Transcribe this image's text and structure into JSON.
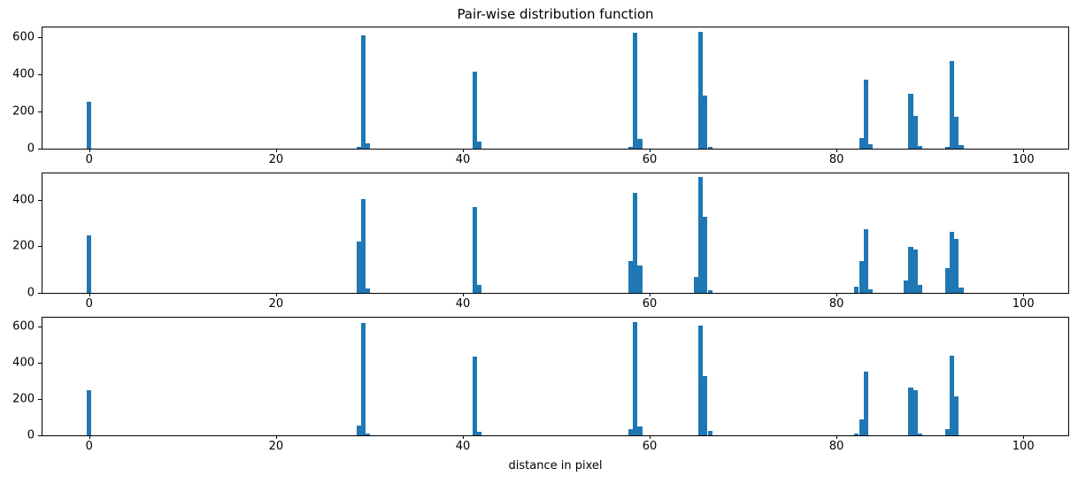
{
  "figure": {
    "title": "Pair-wise distribution function",
    "xlabel": "distance in pixel",
    "bar_color": "#1f77b4",
    "background_color": "#ffffff"
  },
  "chart_data": [
    {
      "type": "bar",
      "name": "pair-wise-distribution-top",
      "xlim": [
        -5,
        105
      ],
      "ylim": [
        0,
        660
      ],
      "xticks": [
        0,
        20,
        40,
        60,
        80,
        100
      ],
      "yticks": [
        0,
        200,
        400,
        600
      ],
      "bar_width": 0.5,
      "grid": false,
      "legend": "none",
      "bars": [
        [
          -0.25,
          250
        ],
        [
          28.6,
          10
        ],
        [
          29.1,
          610
        ],
        [
          29.6,
          30
        ],
        [
          41.0,
          415
        ],
        [
          41.5,
          40
        ],
        [
          57.7,
          10
        ],
        [
          58.2,
          622
        ],
        [
          58.7,
          52
        ],
        [
          65.2,
          628
        ],
        [
          65.7,
          285
        ],
        [
          66.2,
          12
        ],
        [
          82.4,
          58
        ],
        [
          82.9,
          372
        ],
        [
          83.4,
          25
        ],
        [
          87.7,
          295
        ],
        [
          88.2,
          175
        ],
        [
          88.7,
          15
        ],
        [
          91.6,
          10
        ],
        [
          92.1,
          472
        ],
        [
          92.6,
          170
        ],
        [
          93.1,
          20
        ]
      ]
    },
    {
      "type": "bar",
      "name": "pair-wise-distribution-middle",
      "xlim": [
        -5,
        105
      ],
      "ylim": [
        0,
        520
      ],
      "xticks": [
        0,
        20,
        40,
        60,
        80,
        100
      ],
      "yticks": [
        0,
        200,
        400
      ],
      "bar_width": 0.5,
      "grid": false,
      "legend": "none",
      "bars": [
        [
          -0.25,
          247
        ],
        [
          28.6,
          220
        ],
        [
          29.1,
          403
        ],
        [
          29.6,
          18
        ],
        [
          41.0,
          368
        ],
        [
          41.5,
          33
        ],
        [
          57.7,
          137
        ],
        [
          58.2,
          428
        ],
        [
          58.7,
          118
        ],
        [
          64.7,
          70
        ],
        [
          65.2,
          497
        ],
        [
          65.7,
          325
        ],
        [
          66.2,
          12
        ],
        [
          81.9,
          25
        ],
        [
          82.4,
          135
        ],
        [
          82.9,
          272
        ],
        [
          83.4,
          16
        ],
        [
          87.2,
          55
        ],
        [
          87.7,
          197
        ],
        [
          88.2,
          188
        ],
        [
          88.7,
          35
        ],
        [
          91.6,
          105
        ],
        [
          92.1,
          262
        ],
        [
          92.6,
          233
        ],
        [
          93.1,
          23
        ]
      ]
    },
    {
      "type": "bar",
      "name": "pair-wise-distribution-bottom",
      "xlim": [
        -5,
        105
      ],
      "ylim": [
        0,
        660
      ],
      "xticks": [
        0,
        20,
        40,
        60,
        80,
        100
      ],
      "yticks": [
        0,
        200,
        400,
        600
      ],
      "bar_width": 0.5,
      "grid": false,
      "legend": "none",
      "bars": [
        [
          -0.25,
          250
        ],
        [
          28.6,
          52
        ],
        [
          29.1,
          620
        ],
        [
          29.6,
          12
        ],
        [
          41.0,
          437
        ],
        [
          41.5,
          22
        ],
        [
          57.7,
          35
        ],
        [
          58.2,
          628
        ],
        [
          58.7,
          50
        ],
        [
          65.2,
          607
        ],
        [
          65.7,
          330
        ],
        [
          66.2,
          25
        ],
        [
          81.9,
          10
        ],
        [
          82.4,
          88
        ],
        [
          82.9,
          352
        ],
        [
          87.7,
          262
        ],
        [
          88.2,
          250
        ],
        [
          88.7,
          8
        ],
        [
          91.6,
          35
        ],
        [
          92.1,
          438
        ],
        [
          92.6,
          215
        ]
      ]
    }
  ]
}
